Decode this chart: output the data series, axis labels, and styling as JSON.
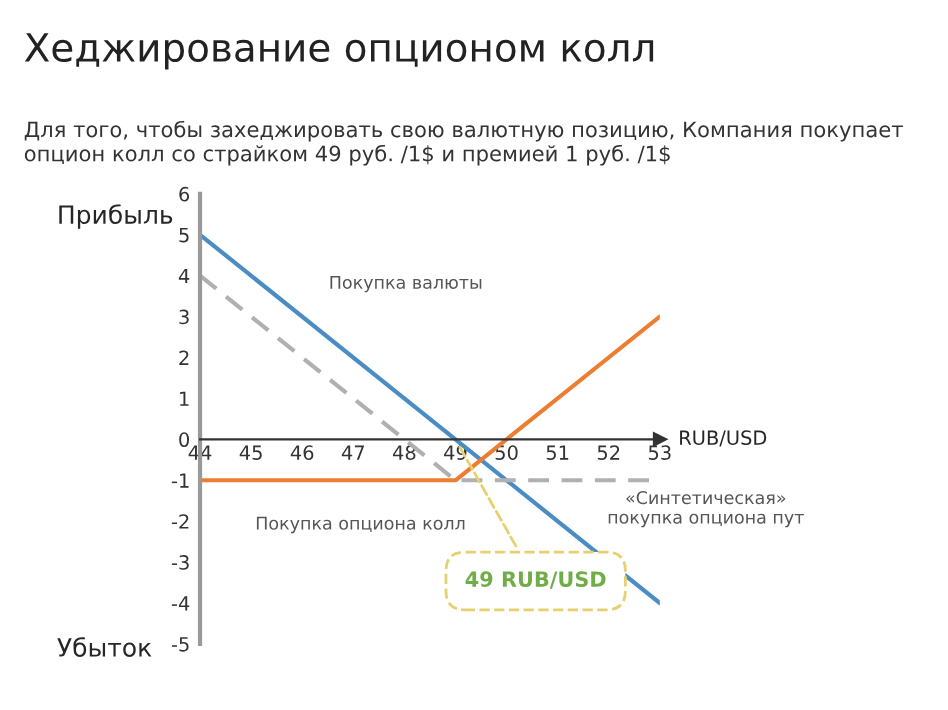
{
  "chart_data": {
    "type": "line",
    "title": "Хеджирование опционом колл",
    "subtitle": "Для того, чтобы захеджировать свою валютную позицию, Компания покупает опцион колл со страйком 49 руб. /1$ и премией 1 руб. /1$",
    "xlabel": "RUB/USD",
    "annotations": [
      "Прибыль",
      "Убыток",
      {
        "text": "49 RUB/USD",
        "x": 49,
        "y": 0
      }
    ],
    "series": [
      {
        "name": "Покупка валюты",
        "color": "#4a8cc4",
        "x": [
          44,
          53
        ],
        "values": [
          5,
          -4
        ],
        "line_style": "solid"
      },
      {
        "name": "Покупка опциона колл",
        "color": "#ed7d31",
        "x": [
          44,
          49,
          53
        ],
        "values": [
          -1,
          -1,
          3
        ],
        "line_style": "solid"
      },
      {
        "name": "«Синтетическая» покупка опциона пут",
        "color": "#b0b0b0",
        "x": [
          44,
          49,
          53
        ],
        "values": [
          4,
          -1,
          -1
        ],
        "line_style": "dashed"
      }
    ],
    "xlim": [
      44,
      53
    ],
    "ylim": [
      -5,
      6
    ],
    "xticks": [
      44,
      45,
      46,
      47,
      48,
      49,
      50,
      51,
      52,
      53
    ],
    "yticks": [
      -5,
      -4,
      -3,
      -2,
      -1,
      0,
      1,
      2,
      3,
      4,
      5,
      6
    ],
    "grid": false,
    "legend": false,
    "marker": "none"
  }
}
